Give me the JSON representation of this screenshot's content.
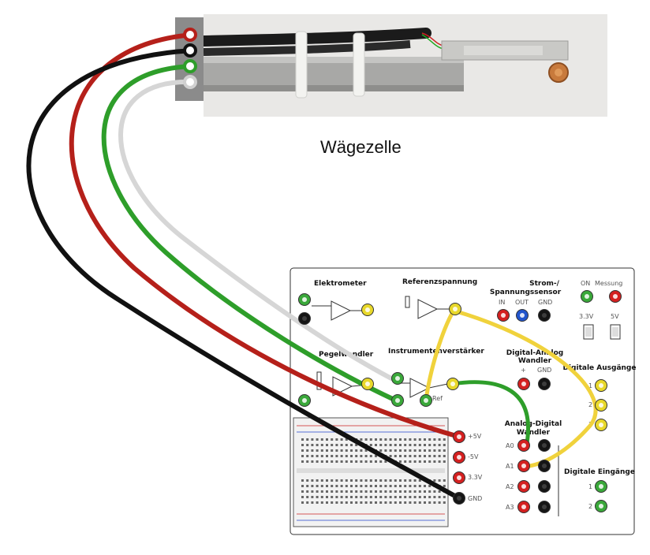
{
  "caption": "Wägezelle",
  "board": {
    "sections": {
      "elektrometer": "Elektrometer",
      "referenz": "Referenzspannung",
      "strom_line1": "Strom-/",
      "strom_line2": "Spannungssensor",
      "pegelwandler": "Pegelwandler",
      "instrumenten": "Instrumentenverstärker",
      "da_line1": "Digital-Analog",
      "da_line2": "Wandler",
      "ad_line1": "Analog-Digital",
      "ad_line2": "Wandler",
      "dig_out": "Digitale Ausgänge",
      "dig_in": "Digitale Eingänge"
    },
    "labels": {
      "on": "ON",
      "messung": "Messung",
      "in": "IN",
      "out": "OUT",
      "gnd": "GND",
      "v33": "3.3V",
      "v5": "5V",
      "plus": "+",
      "gnd2": "GND",
      "ref": "Ref",
      "a0": "A0",
      "a1": "A1",
      "a2": "A2",
      "a3": "A3",
      "o1": "1",
      "o2": "2",
      "o3": "3",
      "i1": "1",
      "i2": "2",
      "p5v": "+5V",
      "m5v": "-5V",
      "p33v": "3.3V",
      "gnd3": "GND"
    }
  },
  "colors": {
    "wire_red": "#b5201a",
    "wire_black": "#111111",
    "wire_green": "#2e9e2a",
    "wire_white": "#d8d8d8",
    "wire_yellow": "#f0d23c",
    "socket_red": "#d42020",
    "socket_green": "#3aa83a",
    "socket_yellow": "#e8d82a",
    "socket_blue": "#2255cc",
    "socket_black": "#151515"
  }
}
